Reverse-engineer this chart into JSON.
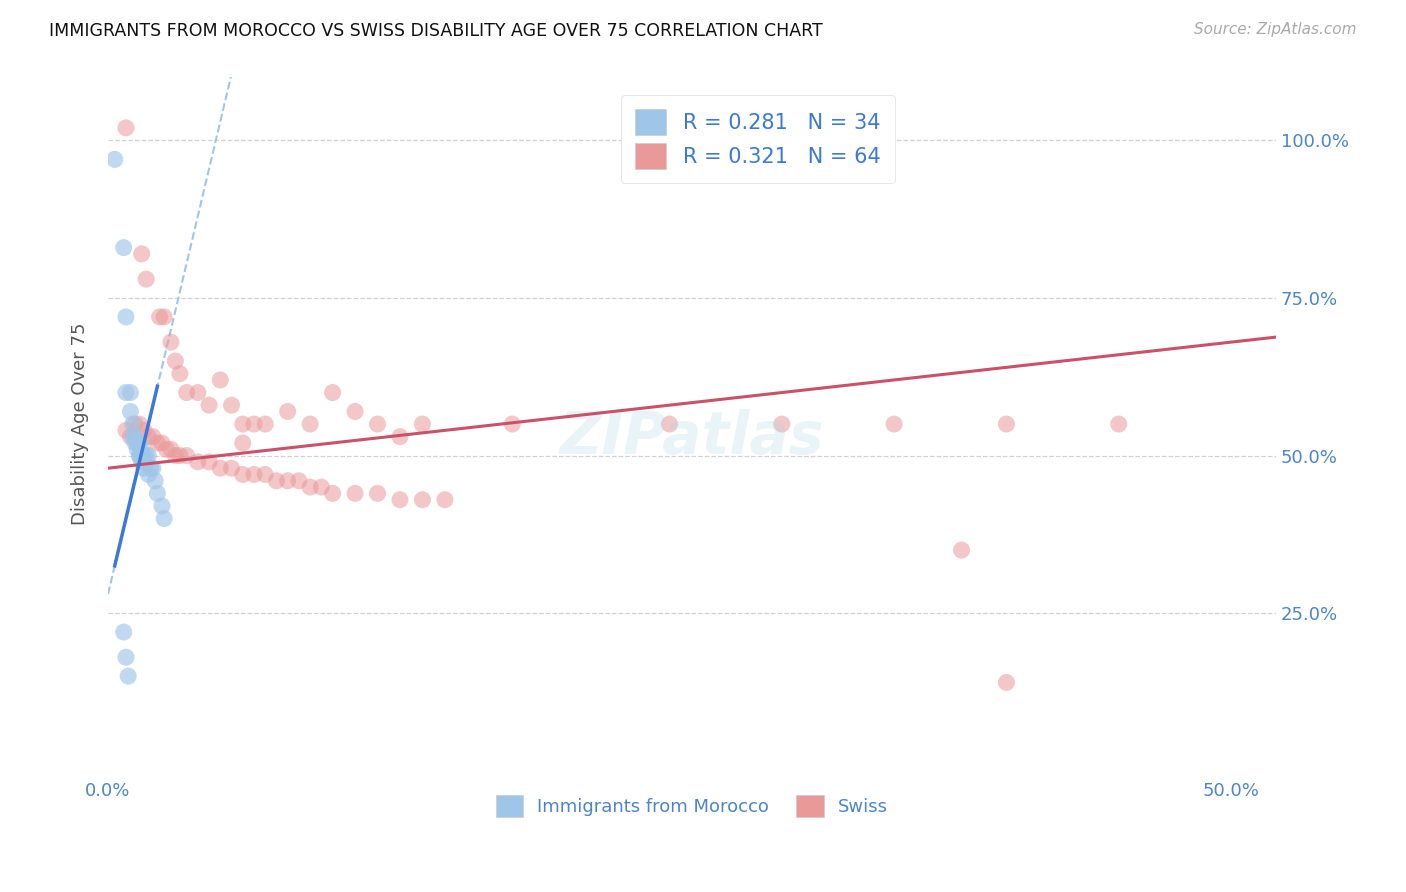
{
  "title": "IMMIGRANTS FROM MOROCCO VS SWISS DISABILITY AGE OVER 75 CORRELATION CHART",
  "source": "Source: ZipAtlas.com",
  "ylabel": "Disability Age Over 75",
  "blue_color": "#9fc5e8",
  "pink_color": "#ea9999",
  "blue_line_color": "#3c78d8",
  "pink_line_color": "#c9526a",
  "dashed_line_color": "#9fc5e8",
  "tick_color": "#4a86c8",
  "grid_color": "#cccccc",
  "background_color": "#ffffff",
  "legend_bottom": [
    "Immigrants from Morocco",
    "Swiss"
  ],
  "x_min": 0.0,
  "x_max": 0.52,
  "y_min": 0.0,
  "y_max": 1.1,
  "blue_scatter": [
    [
      0.003,
      0.97
    ],
    [
      0.007,
      0.83
    ],
    [
      0.008,
      0.72
    ],
    [
      0.008,
      0.6
    ],
    [
      0.01,
      0.6
    ],
    [
      0.01,
      0.57
    ],
    [
      0.011,
      0.55
    ],
    [
      0.011,
      0.53
    ],
    [
      0.012,
      0.53
    ],
    [
      0.012,
      0.52
    ],
    [
      0.013,
      0.52
    ],
    [
      0.013,
      0.51
    ],
    [
      0.014,
      0.52
    ],
    [
      0.014,
      0.5
    ],
    [
      0.014,
      0.5
    ],
    [
      0.015,
      0.51
    ],
    [
      0.015,
      0.5
    ],
    [
      0.015,
      0.49
    ],
    [
      0.016,
      0.5
    ],
    [
      0.016,
      0.49
    ],
    [
      0.016,
      0.48
    ],
    [
      0.017,
      0.5
    ],
    [
      0.017,
      0.49
    ],
    [
      0.018,
      0.5
    ],
    [
      0.018,
      0.47
    ],
    [
      0.019,
      0.48
    ],
    [
      0.02,
      0.48
    ],
    [
      0.021,
      0.46
    ],
    [
      0.022,
      0.44
    ],
    [
      0.024,
      0.42
    ],
    [
      0.025,
      0.4
    ],
    [
      0.007,
      0.22
    ],
    [
      0.008,
      0.18
    ],
    [
      0.009,
      0.15
    ]
  ],
  "pink_scatter": [
    [
      0.008,
      1.02
    ],
    [
      0.015,
      0.82
    ],
    [
      0.017,
      0.78
    ],
    [
      0.023,
      0.72
    ],
    [
      0.025,
      0.72
    ],
    [
      0.028,
      0.68
    ],
    [
      0.03,
      0.65
    ],
    [
      0.032,
      0.63
    ],
    [
      0.035,
      0.6
    ],
    [
      0.04,
      0.6
    ],
    [
      0.045,
      0.58
    ],
    [
      0.05,
      0.62
    ],
    [
      0.055,
      0.58
    ],
    [
      0.06,
      0.55
    ],
    [
      0.065,
      0.55
    ],
    [
      0.008,
      0.54
    ],
    [
      0.01,
      0.53
    ],
    [
      0.012,
      0.55
    ],
    [
      0.014,
      0.55
    ],
    [
      0.016,
      0.54
    ],
    [
      0.018,
      0.53
    ],
    [
      0.02,
      0.53
    ],
    [
      0.022,
      0.52
    ],
    [
      0.024,
      0.52
    ],
    [
      0.026,
      0.51
    ],
    [
      0.028,
      0.51
    ],
    [
      0.03,
      0.5
    ],
    [
      0.032,
      0.5
    ],
    [
      0.035,
      0.5
    ],
    [
      0.04,
      0.49
    ],
    [
      0.045,
      0.49
    ],
    [
      0.05,
      0.48
    ],
    [
      0.055,
      0.48
    ],
    [
      0.06,
      0.47
    ],
    [
      0.065,
      0.47
    ],
    [
      0.07,
      0.47
    ],
    [
      0.075,
      0.46
    ],
    [
      0.08,
      0.46
    ],
    [
      0.085,
      0.46
    ],
    [
      0.09,
      0.45
    ],
    [
      0.095,
      0.45
    ],
    [
      0.1,
      0.44
    ],
    [
      0.11,
      0.44
    ],
    [
      0.12,
      0.44
    ],
    [
      0.13,
      0.43
    ],
    [
      0.14,
      0.43
    ],
    [
      0.15,
      0.43
    ],
    [
      0.06,
      0.52
    ],
    [
      0.07,
      0.55
    ],
    [
      0.08,
      0.57
    ],
    [
      0.09,
      0.55
    ],
    [
      0.1,
      0.6
    ],
    [
      0.11,
      0.57
    ],
    [
      0.12,
      0.55
    ],
    [
      0.13,
      0.53
    ],
    [
      0.14,
      0.55
    ],
    [
      0.18,
      0.55
    ],
    [
      0.25,
      0.55
    ],
    [
      0.3,
      0.55
    ],
    [
      0.35,
      0.55
    ],
    [
      0.4,
      0.55
    ],
    [
      0.45,
      0.55
    ],
    [
      0.38,
      0.35
    ],
    [
      0.4,
      0.14
    ]
  ]
}
